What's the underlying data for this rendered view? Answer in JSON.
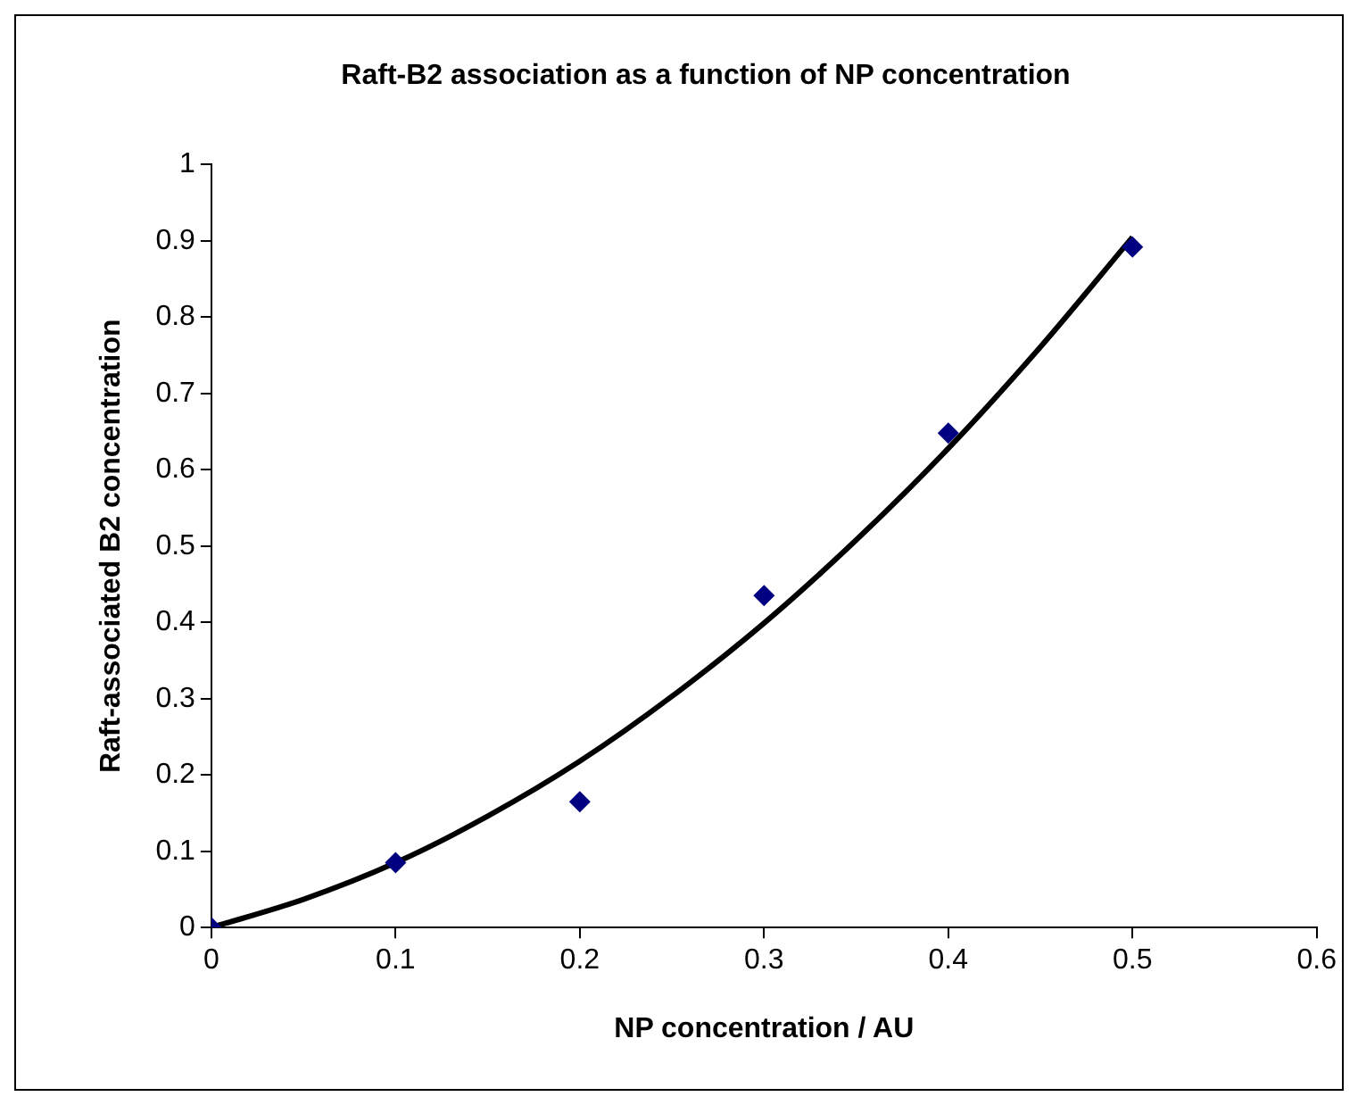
{
  "chart_data": {
    "type": "scatter",
    "title": "Raft-B2 association as a function of NP concentration",
    "xlabel": "NP concentration / AU",
    "ylabel": "Raft-associated B2 concentration",
    "series": [
      {
        "color": "#000080",
        "marker": "diamond",
        "x": [
          0,
          0.1,
          0.2,
          0.3,
          0.4,
          0.5
        ],
        "values": [
          0,
          0.085,
          0.165,
          0.435,
          0.648,
          0.892
        ]
      },
      {
        "type": "line",
        "color": "#000000",
        "marker": "none",
        "x": [
          0,
          0.05,
          0.1,
          0.15,
          0.2,
          0.25,
          0.3,
          0.35,
          0.4,
          0.45,
          0.5
        ],
        "values": [
          0,
          0.037,
          0.085,
          0.146,
          0.218,
          0.303,
          0.399,
          0.508,
          0.628,
          0.761,
          0.905
        ]
      }
    ],
    "xlim": [
      0,
      0.6
    ],
    "xticks": [
      0,
      0.1,
      0.2,
      0.3,
      0.4,
      0.5,
      0.6
    ],
    "ylim": [
      0,
      1
    ],
    "yticks": [
      0,
      0.1,
      0.2,
      0.3,
      0.4,
      0.5,
      0.6,
      0.7,
      0.8,
      0.9,
      1
    ],
    "grid": false,
    "legend": false
  }
}
